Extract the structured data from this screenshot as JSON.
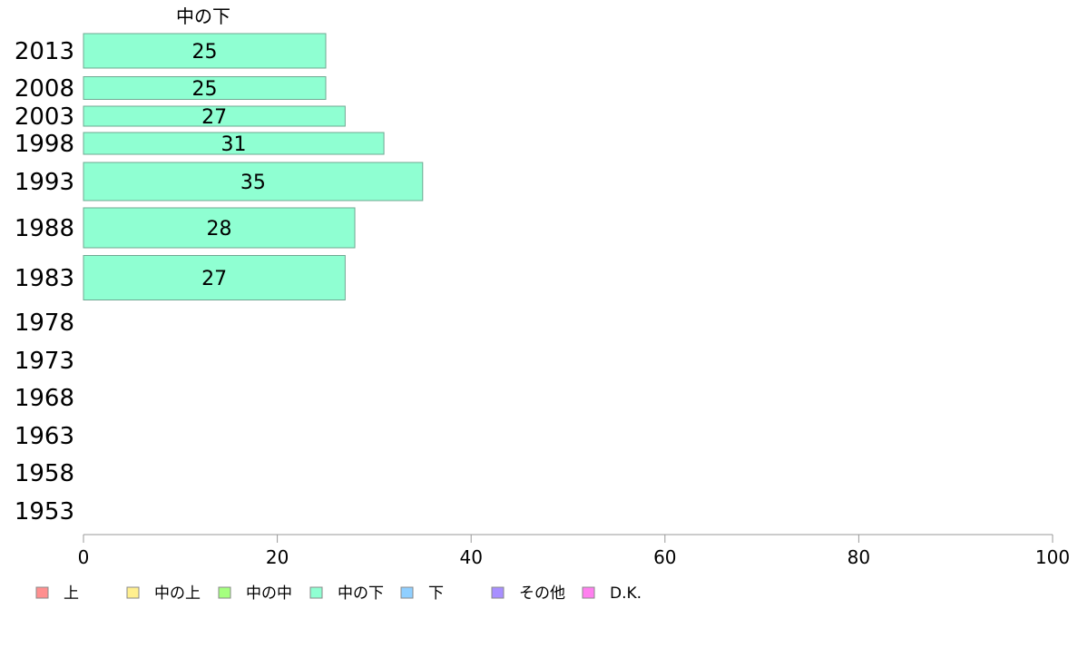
{
  "chart_data": {
    "type": "bar",
    "orientation": "horizontal",
    "series_title": "中の下",
    "categories": [
      "2013",
      "2008",
      "2003",
      "1998",
      "1993",
      "1988",
      "1983",
      "1978",
      "1973",
      "1968",
      "1963",
      "1958",
      "1953"
    ],
    "values": [
      25,
      25,
      27,
      31,
      35,
      28,
      27,
      null,
      null,
      null,
      null,
      null,
      null
    ],
    "value_labels": [
      "25",
      "25",
      "27",
      "31",
      "35",
      "28",
      "27",
      "",
      "",
      "",
      "",
      "",
      ""
    ],
    "xlim": [
      0,
      100
    ],
    "xticks": [
      "0",
      "20",
      "40",
      "60",
      "80",
      "100"
    ],
    "grid": false,
    "legend_position": "bottom",
    "bar_color": "#8fffd2",
    "legend": [
      {
        "label": "上",
        "color": "#ff8f8f"
      },
      {
        "label": "中の上",
        "color": "#ffef8f"
      },
      {
        "label": "中の中",
        "color": "#a5ff7f"
      },
      {
        "label": "中の下",
        "color": "#8fffd2"
      },
      {
        "label": "下",
        "color": "#8fcfff"
      },
      {
        "label": "その他",
        "color": "#a88fff"
      },
      {
        "label": "D.K.",
        "color": "#ff7fef"
      }
    ]
  }
}
